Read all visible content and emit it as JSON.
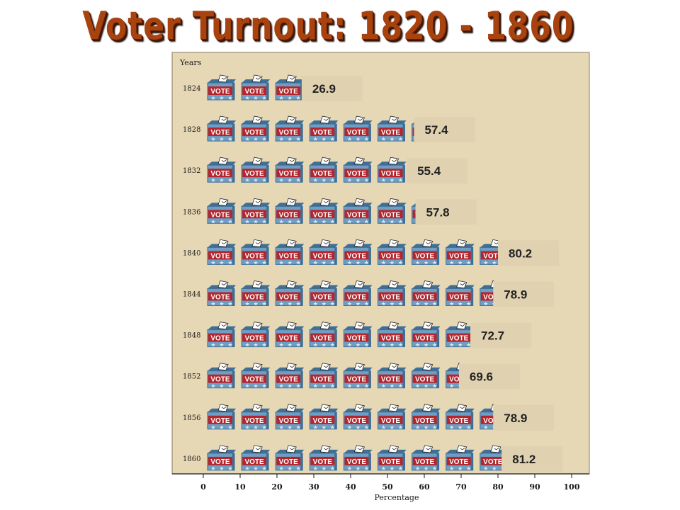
{
  "title": "Voter Turnout:  1820 - 1860",
  "chart_data": {
    "type": "bar",
    "orientation": "horizontal",
    "categories": [
      "1824",
      "1828",
      "1832",
      "1836",
      "1840",
      "1844",
      "1848",
      "1852",
      "1856",
      "1860"
    ],
    "values": [
      26.9,
      57.4,
      55.4,
      57.8,
      80.2,
      78.9,
      72.7,
      69.6,
      78.9,
      81.2
    ],
    "xlabel": "Percentage",
    "ylabel": "Years",
    "xlim": [
      0,
      100
    ],
    "xticks": [
      "0",
      "10",
      "20",
      "30",
      "40",
      "50",
      "60",
      "70",
      "80",
      "90",
      "100"
    ],
    "bar_icon_text": "VOTE",
    "colors": {
      "panel": "#e6d7b5",
      "ballot_box": "#6e9ec4",
      "ballot_box_dark": "#3f6f95",
      "vote_band": "#b3262d",
      "title": "#a8430f",
      "value_box": "#e0d2b0"
    }
  }
}
